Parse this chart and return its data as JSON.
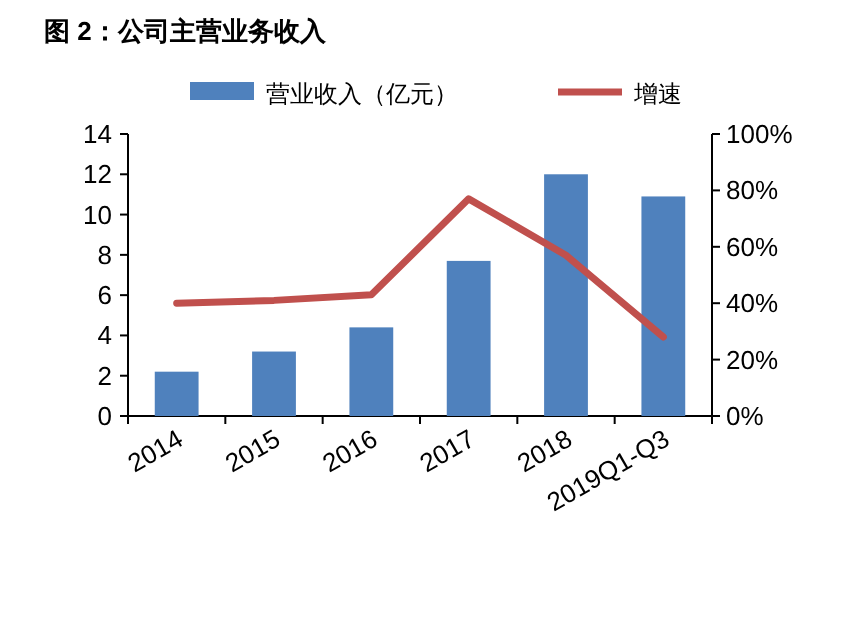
{
  "chart_data": {
    "type": "bar",
    "title": "图 2：公司主营业务收入",
    "categories": [
      "2014",
      "2015",
      "2016",
      "2017",
      "2018",
      "2019Q1-Q3"
    ],
    "series": [
      {
        "name": "营业收入（亿元）",
        "color": "#4f81bd",
        "values": [
          2.2,
          3.2,
          4.4,
          7.7,
          12.0,
          10.9
        ]
      },
      {
        "name": "增速",
        "type": "line",
        "axis": "y2",
        "color": "#c0504d",
        "values": [
          40,
          41,
          43,
          77,
          57,
          28
        ]
      }
    ],
    "ylim": [
      0,
      14
    ],
    "yticks": [
      0,
      2,
      4,
      6,
      8,
      10,
      12,
      14
    ],
    "y2lim": [
      0,
      100
    ],
    "y2ticks": [
      {
        "value": 0,
        "label": "0%"
      },
      {
        "value": 20,
        "label": "20%"
      },
      {
        "value": 40,
        "label": "40%"
      },
      {
        "value": 60,
        "label": "60%"
      },
      {
        "value": 80,
        "label": "80%"
      },
      {
        "value": 100,
        "label": "100%"
      }
    ],
    "legend": "top",
    "grid": false,
    "marker": "none",
    "line_style": "solid"
  }
}
